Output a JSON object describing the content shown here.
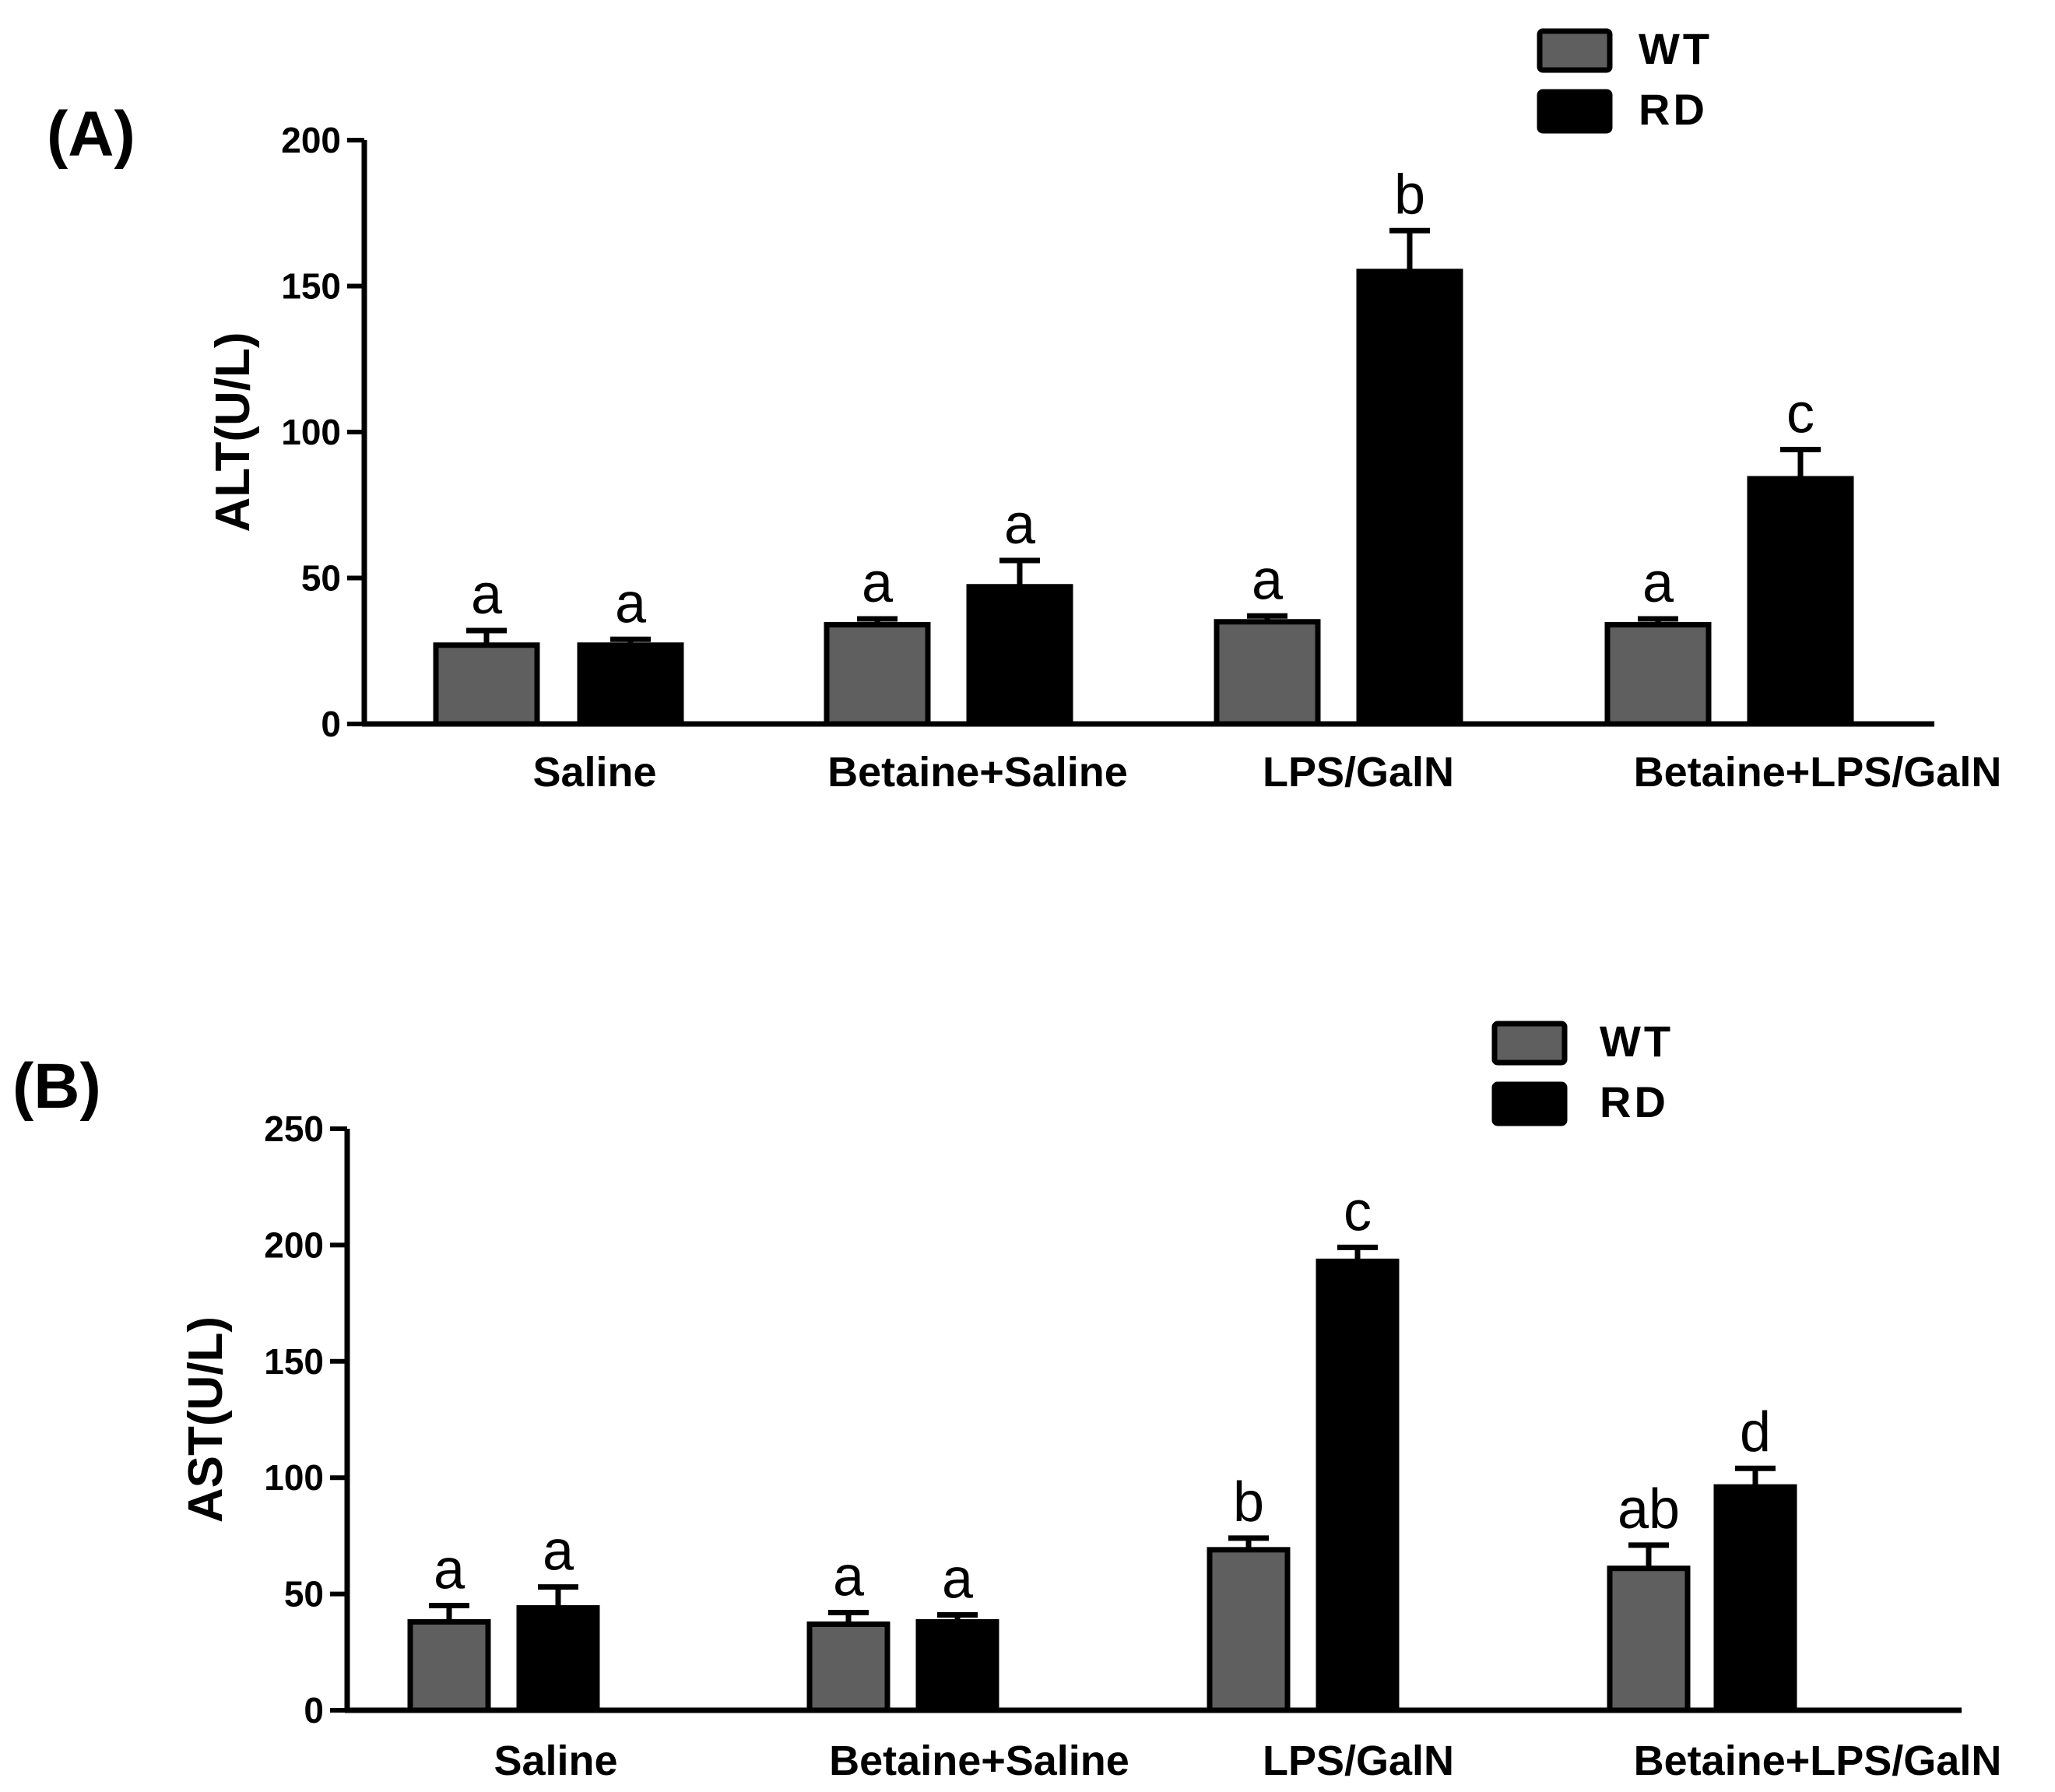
{
  "chart_data": [
    {
      "type": "bar",
      "panel_label": "(A)",
      "ylabel": "ALT(U/L)",
      "xlabel": "",
      "ylim": [
        0,
        200
      ],
      "yticks": [
        "0",
        "50",
        "100",
        "150",
        "200"
      ],
      "categories": [
        "Saline",
        "Betaine+Saline",
        "LPS/GalN",
        "Betaine+LPS/GalN"
      ],
      "legend": [
        "WT",
        "RD"
      ],
      "series": [
        {
          "name": "WT",
          "color": "#5f5f5f",
          "values": [
            27,
            34,
            35,
            34
          ],
          "errors": [
            5,
            2,
            2,
            2
          ],
          "sig_labels": [
            "a",
            "a",
            "a",
            "a"
          ]
        },
        {
          "name": "RD",
          "color": "#000000",
          "values": [
            27,
            47,
            155,
            84
          ],
          "errors": [
            2,
            9,
            14,
            10
          ],
          "sig_labels": [
            "a",
            "a",
            "b",
            "c"
          ]
        }
      ]
    },
    {
      "type": "bar",
      "panel_label": "(B)",
      "ylabel": "AST(U/L)",
      "xlabel": "",
      "ylim": [
        0,
        250
      ],
      "yticks": [
        "0",
        "50",
        "100",
        "150",
        "200",
        "250"
      ],
      "categories": [
        "Saline",
        "Betaine+Saline",
        "LPS/GalN",
        "Betaine+LPS/GalN"
      ],
      "legend": [
        "WT",
        "RD"
      ],
      "series": [
        {
          "name": "WT",
          "color": "#5f5f5f",
          "values": [
            38,
            37,
            69,
            61
          ],
          "errors": [
            7,
            5,
            5,
            10
          ],
          "sig_labels": [
            "a",
            "a",
            "b",
            "ab"
          ]
        },
        {
          "name": "RD",
          "color": "#000000",
          "values": [
            44,
            38,
            193,
            96
          ],
          "errors": [
            9,
            3,
            6,
            8
          ],
          "sig_labels": [
            "a",
            "a",
            "c",
            "d"
          ]
        }
      ]
    }
  ]
}
